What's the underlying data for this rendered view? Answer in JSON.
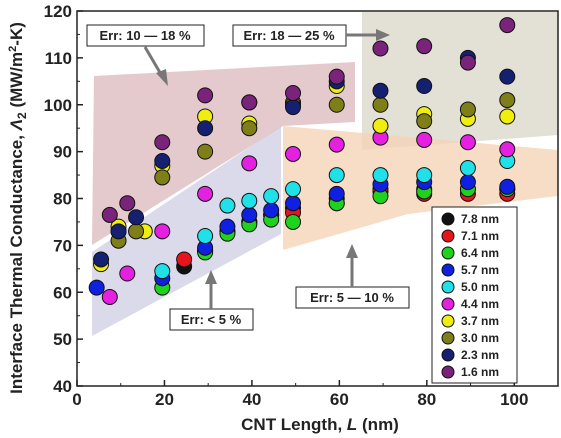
{
  "chart_data": {
    "type": "scatter",
    "xlabel": "CNT Length, L (nm)",
    "ylabel": "Interface Thermal Conductance, Λ2 (MW/m²-K)",
    "xlim": [
      0,
      110
    ],
    "ylim": [
      40,
      120
    ],
    "x_ticks": [
      0,
      20,
      40,
      60,
      80,
      100
    ],
    "y_ticks": [
      40,
      50,
      60,
      70,
      80,
      90,
      100,
      110,
      120
    ],
    "legend_position": "bottom-right",
    "annotations": [
      {
        "text": "Err: 10 — 18 %"
      },
      {
        "text": "Err: 18 — 25 %"
      },
      {
        "text": "Err: < 5 %"
      },
      {
        "text": "Err: 5 — 10 %"
      }
    ],
    "series": [
      {
        "name": "7.8 nm",
        "color": "#111111",
        "points": [
          [
            24.5,
            65.5
          ],
          [
            29.3,
            68.8
          ],
          [
            34.4,
            73
          ],
          [
            39.4,
            75
          ],
          [
            44.4,
            76.5
          ],
          [
            49.4,
            78
          ],
          [
            59.4,
            80
          ],
          [
            69.4,
            81.5
          ],
          [
            79.4,
            82
          ],
          [
            89.4,
            82
          ],
          [
            98.4,
            82
          ]
        ]
      },
      {
        "name": "7.1 nm",
        "color": "#e8141b",
        "points": [
          [
            24.5,
            67
          ],
          [
            29.3,
            69
          ],
          [
            34.4,
            73
          ],
          [
            39.4,
            75
          ],
          [
            44.4,
            76.5
          ],
          [
            49.4,
            77
          ],
          [
            59.4,
            79
          ],
          [
            69.4,
            82
          ],
          [
            79.4,
            81
          ],
          [
            89.4,
            81
          ],
          [
            98.4,
            81
          ]
        ]
      },
      {
        "name": "6.4 nm",
        "color": "#1ed21e",
        "points": [
          [
            19.5,
            61
          ],
          [
            29.3,
            68.5
          ],
          [
            34.4,
            72.5
          ],
          [
            39.4,
            74.5
          ],
          [
            44.4,
            75.5
          ],
          [
            49.4,
            75
          ],
          [
            59.4,
            79
          ],
          [
            69.4,
            80.5
          ],
          [
            79.4,
            81.5
          ],
          [
            89.4,
            82
          ],
          [
            98.4,
            82
          ]
        ]
      },
      {
        "name": "5.7 nm",
        "color": "#1020e0",
        "points": [
          [
            4.5,
            61
          ],
          [
            9.5,
            73
          ],
          [
            19.5,
            63
          ],
          [
            29.3,
            69.5
          ],
          [
            34.4,
            74
          ],
          [
            39.4,
            76.5
          ],
          [
            44.4,
            77.5
          ],
          [
            49.4,
            79
          ],
          [
            59.4,
            81
          ],
          [
            69.4,
            83
          ],
          [
            79.4,
            83.5
          ],
          [
            89.4,
            83.5
          ],
          [
            98.4,
            82.5
          ]
        ]
      },
      {
        "name": "5.0 nm",
        "color": "#20e0e8",
        "points": [
          [
            19.5,
            64.5
          ],
          [
            29.3,
            72
          ],
          [
            34.4,
            78.5
          ],
          [
            39.4,
            79.5
          ],
          [
            44.4,
            80.5
          ],
          [
            49.4,
            82
          ],
          [
            59.4,
            85
          ],
          [
            69.4,
            85
          ],
          [
            79.4,
            85
          ],
          [
            89.4,
            86.5
          ],
          [
            98.4,
            88
          ]
        ]
      },
      {
        "name": "4.4 nm",
        "color": "#e520e0",
        "points": [
          [
            7.5,
            59
          ],
          [
            11.5,
            64
          ],
          [
            19.5,
            73
          ],
          [
            29.3,
            81
          ],
          [
            39.4,
            87.5
          ],
          [
            49.4,
            89.5
          ],
          [
            59.4,
            91.5
          ],
          [
            69.4,
            93
          ],
          [
            79.4,
            92.5
          ],
          [
            89.4,
            92
          ],
          [
            98.4,
            90.5
          ]
        ]
      },
      {
        "name": "3.7 nm",
        "color": "#f0ee10",
        "points": [
          [
            5.5,
            66
          ],
          [
            9.5,
            74
          ],
          [
            15.5,
            73
          ],
          [
            19.5,
            87
          ],
          [
            29.3,
            97.5
          ],
          [
            39.4,
            96
          ],
          [
            49.4,
            100.5
          ],
          [
            59.4,
            104
          ],
          [
            69.4,
            95.5
          ],
          [
            79.4,
            98
          ],
          [
            89.4,
            97
          ],
          [
            98.4,
            97.5
          ]
        ]
      },
      {
        "name": "3.0 nm",
        "color": "#7f7f1a",
        "points": [
          [
            9.5,
            71
          ],
          [
            13.5,
            73
          ],
          [
            19.5,
            84.5
          ],
          [
            29.3,
            90
          ],
          [
            39.4,
            95
          ],
          [
            49.4,
            100
          ],
          [
            59.4,
            100
          ],
          [
            69.4,
            100
          ],
          [
            79.4,
            96.5
          ],
          [
            89.4,
            99
          ],
          [
            98.4,
            101
          ]
        ]
      },
      {
        "name": "2.3 nm",
        "color": "#152070",
        "points": [
          [
            5.5,
            67
          ],
          [
            9.5,
            73
          ],
          [
            13.5,
            76
          ],
          [
            19.5,
            88
          ],
          [
            29.3,
            95
          ],
          [
            39.4,
            100.5
          ],
          [
            49.4,
            99.5
          ],
          [
            59.4,
            105
          ],
          [
            69.4,
            103
          ],
          [
            79.4,
            104
          ],
          [
            89.4,
            110
          ],
          [
            98.4,
            106
          ]
        ]
      },
      {
        "name": "1.6 nm",
        "color": "#7a237a",
        "points": [
          [
            7.5,
            76.5
          ],
          [
            11.5,
            79
          ],
          [
            19.5,
            92
          ],
          [
            29.3,
            102
          ],
          [
            39.4,
            100.5
          ],
          [
            49.4,
            102.5
          ],
          [
            59.4,
            106
          ],
          [
            69.4,
            112
          ],
          [
            79.4,
            112.5
          ],
          [
            89.4,
            109
          ],
          [
            98.4,
            117
          ]
        ]
      }
    ]
  }
}
